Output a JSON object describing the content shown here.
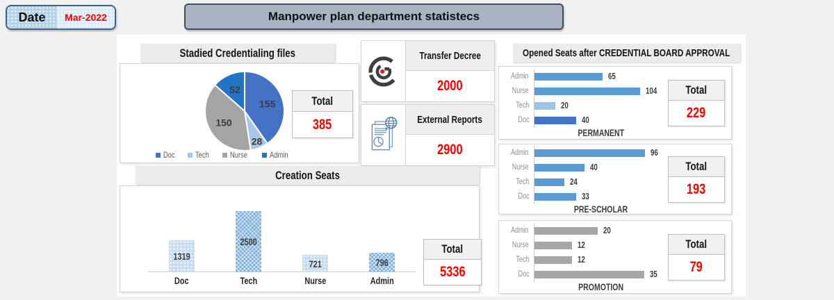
{
  "date": {
    "label": "Date",
    "value": "Mar-2022"
  },
  "header": {
    "title": "Manpower plan department statistecs"
  },
  "total_label": "Total",
  "counters": [
    {
      "title": "Transfer Decree",
      "value": "2000",
      "icon": "transfer-decree-icon"
    },
    {
      "title": "External Reports",
      "value": "2900",
      "icon": "external-reports-icon"
    }
  ],
  "opened_seats": {
    "title": "Opened Seats after CREDENTIAL BOARD APPROVAL"
  },
  "colors": {
    "value_red": "#fe0000",
    "blue": "#5B9BD5",
    "light_blue": "#9DC3E6",
    "dark_blue": "#4472C4",
    "gray": "#A6A6A6"
  },
  "chart_data": [
    {
      "id": "credentialing-pie",
      "type": "pie",
      "title": "Stadied Credentialing files",
      "labels": [
        "Doc",
        "Tech",
        "Nurse",
        "Admin"
      ],
      "values": [
        155,
        28,
        150,
        52
      ],
      "colors": [
        "#4472C4",
        "#A9C6E8",
        "#A5A5A5",
        "#2374C4"
      ],
      "total": "385",
      "legend_position": "bottom"
    },
    {
      "id": "creation-seats",
      "type": "bar",
      "title": "Creation Seats",
      "categories": [
        "Doc",
        "Tech",
        "Nurse",
        "Admin"
      ],
      "values": [
        1319,
        2500,
        721,
        796
      ],
      "fill_styles": [
        "dots",
        "cross",
        "dots",
        "cross"
      ],
      "total": "5336",
      "ylim": [
        0,
        2500
      ],
      "grid": false
    },
    {
      "id": "permanent",
      "type": "bar-horizontal",
      "caption": "PERMANENT",
      "categories": [
        "Admin",
        "Nurse",
        "Tech",
        "Doc"
      ],
      "values": [
        65,
        104,
        20,
        40
      ],
      "colors": [
        "#5B9BD5",
        "#5B9BD5",
        "#9DC3E6",
        "#4472C4"
      ],
      "total": "229",
      "xlim": [
        0,
        120
      ],
      "grid": false
    },
    {
      "id": "pre-scholar",
      "type": "bar-horizontal",
      "caption": "PRE-SCHOLAR",
      "categories": [
        "Admin",
        "Nurse",
        "Tech",
        "Doc"
      ],
      "values": [
        96,
        40,
        24,
        33
      ],
      "colors": [
        "#5B9BD5",
        "#5B9BD5",
        "#5B9BD5",
        "#5B9BD5"
      ],
      "total": "193",
      "xlim": [
        0,
        100
      ],
      "grid": false
    },
    {
      "id": "promotion",
      "type": "bar-horizontal",
      "caption": "PROMOTION",
      "categories": [
        "Admin",
        "Nurse",
        "Tech",
        "Doc"
      ],
      "values": [
        20,
        12,
        12,
        35
      ],
      "colors": [
        "#A6A6A6",
        "#A6A6A6",
        "#A6A6A6",
        "#A6A6A6"
      ],
      "total": "79",
      "xlim": [
        0,
        40
      ],
      "grid": false
    }
  ]
}
